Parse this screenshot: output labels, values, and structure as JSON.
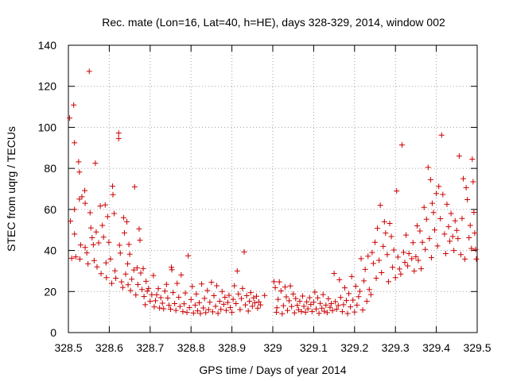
{
  "chart_data": {
    "type": "scatter",
    "title": "Rec. mate (Lon=16, Lat=40, h=HE), days 328-329, 2014, window 002",
    "xlabel": "GPS time / Days of year 2014",
    "ylabel": "STEC from uqrg / TECUs",
    "xlim": [
      328.5,
      329.5
    ],
    "ylim": [
      0,
      140
    ],
    "x_ticks": [
      328.5,
      328.6,
      328.7,
      328.8,
      328.9,
      329,
      329.1,
      329.2,
      329.3,
      329.4,
      329.5
    ],
    "x_tick_labels": [
      "328.5",
      "328.6",
      "328.7",
      "328.8",
      "328.9",
      "329",
      "329.1",
      "329.2",
      "329.3",
      "329.4",
      "329.5"
    ],
    "y_ticks": [
      0,
      20,
      40,
      60,
      80,
      100,
      120,
      140
    ],
    "y_tick_labels": [
      "0",
      "20",
      "40",
      "60",
      "80",
      "100",
      "120",
      "140"
    ],
    "grid": true,
    "marker": "+",
    "color": "#cc0000",
    "points": [
      [
        328.503,
        104.5
      ],
      [
        328.505,
        54.3
      ],
      [
        328.508,
        36.2
      ],
      [
        328.513,
        110.9
      ],
      [
        328.515,
        92.5
      ],
      [
        328.515,
        60.0
      ],
      [
        328.515,
        48.0
      ],
      [
        328.518,
        36.9
      ],
      [
        328.525,
        83.2
      ],
      [
        328.527,
        78.2
      ],
      [
        328.527,
        65.0
      ],
      [
        328.528,
        35.8
      ],
      [
        328.53,
        42.7
      ],
      [
        328.533,
        66.2
      ],
      [
        328.54,
        69.2
      ],
      [
        328.541,
        63.0
      ],
      [
        328.541,
        41.5
      ],
      [
        328.545,
        38.8
      ],
      [
        328.548,
        33.5
      ],
      [
        328.551,
        127.3
      ],
      [
        328.553,
        58.4
      ],
      [
        328.555,
        51.0
      ],
      [
        328.558,
        46.2
      ],
      [
        328.561,
        42.8
      ],
      [
        328.563,
        35.1
      ],
      [
        328.566,
        82.5
      ],
      [
        328.568,
        49.0
      ],
      [
        328.57,
        32.0
      ],
      [
        328.574,
        43.7
      ],
      [
        328.578,
        61.7
      ],
      [
        328.58,
        28.7
      ],
      [
        328.583,
        52.2
      ],
      [
        328.586,
        46.5
      ],
      [
        328.59,
        62.2
      ],
      [
        328.592,
        34.0
      ],
      [
        328.593,
        26.8
      ],
      [
        328.596,
        56.5
      ],
      [
        328.599,
        44.0
      ],
      [
        328.603,
        35.8
      ],
      [
        328.606,
        24.0
      ],
      [
        328.608,
        71.3
      ],
      [
        328.609,
        67.2
      ],
      [
        328.612,
        58.0
      ],
      [
        328.614,
        30.1
      ],
      [
        328.616,
        26.5
      ],
      [
        328.623,
        97.2
      ],
      [
        328.623,
        94.5
      ],
      [
        328.625,
        42.6
      ],
      [
        328.627,
        38.7
      ],
      [
        328.63,
        24.7
      ],
      [
        328.633,
        22.0
      ],
      [
        328.635,
        56.0
      ],
      [
        328.637,
        48.6
      ],
      [
        328.64,
        28.5
      ],
      [
        328.643,
        54.0
      ],
      [
        328.645,
        33.5
      ],
      [
        328.646,
        23.3
      ],
      [
        328.648,
        43.0
      ],
      [
        328.65,
        38.2
      ],
      [
        328.652,
        20.5
      ],
      [
        328.655,
        26.0
      ],
      [
        328.66,
        30.5
      ],
      [
        328.662,
        71.0
      ],
      [
        328.665,
        18.3
      ],
      [
        328.668,
        31.5
      ],
      [
        328.67,
        23.4
      ],
      [
        328.673,
        50.5
      ],
      [
        328.675,
        45.0
      ],
      [
        328.677,
        29.0
      ],
      [
        328.68,
        21.0
      ],
      [
        328.683,
        31.2
      ],
      [
        328.685,
        17.6
      ],
      [
        328.688,
        13.6
      ],
      [
        328.69,
        25.0
      ],
      [
        328.693,
        20.2
      ],
      [
        328.696,
        21.5
      ],
      [
        328.7,
        15.3
      ],
      [
        328.704,
        18.4
      ],
      [
        328.708,
        27.8
      ],
      [
        328.71,
        12.5
      ],
      [
        328.713,
        15.5
      ],
      [
        328.716,
        18.4
      ],
      [
        328.72,
        21.4
      ],
      [
        328.723,
        12.0
      ],
      [
        328.726,
        17.0
      ],
      [
        328.73,
        14.3
      ],
      [
        328.733,
        11.6
      ],
      [
        328.736,
        20.2
      ],
      [
        328.74,
        23.5
      ],
      [
        328.743,
        16.8
      ],
      [
        328.746,
        13.3
      ],
      [
        328.75,
        11.4
      ],
      [
        328.752,
        31.8
      ],
      [
        328.753,
        30.6
      ],
      [
        328.756,
        19.5
      ],
      [
        328.76,
        14.1
      ],
      [
        328.763,
        10.8
      ],
      [
        328.766,
        24.0
      ],
      [
        328.77,
        17.2
      ],
      [
        328.773,
        12.7
      ],
      [
        328.776,
        28.1
      ],
      [
        328.78,
        10.2
      ],
      [
        328.783,
        14.0
      ],
      [
        328.786,
        19.3
      ],
      [
        328.79,
        9.8
      ],
      [
        328.793,
        37.4
      ],
      [
        328.796,
        12.2
      ],
      [
        328.8,
        16.1
      ],
      [
        328.803,
        22.5
      ],
      [
        328.806,
        9.5
      ],
      [
        328.81,
        13.4
      ],
      [
        328.813,
        18.8
      ],
      [
        328.816,
        10.6
      ],
      [
        328.82,
        14.5
      ],
      [
        328.823,
        9.3
      ],
      [
        328.826,
        23.7
      ],
      [
        328.83,
        12.0
      ],
      [
        328.833,
        16.7
      ],
      [
        328.836,
        9.7
      ],
      [
        328.84,
        20.5
      ],
      [
        328.843,
        11.2
      ],
      [
        328.846,
        14.8
      ],
      [
        328.85,
        24.5
      ],
      [
        328.853,
        10.1
      ],
      [
        328.856,
        18.0
      ],
      [
        328.86,
        12.8
      ],
      [
        328.863,
        22.8
      ],
      [
        328.866,
        9.4
      ],
      [
        328.87,
        15.3
      ],
      [
        328.873,
        11.3
      ],
      [
        328.876,
        20.0
      ],
      [
        328.88,
        13.8
      ],
      [
        328.883,
        17.2
      ],
      [
        328.886,
        10.8
      ],
      [
        328.89,
        14.7
      ],
      [
        328.893,
        18.2
      ],
      [
        328.896,
        12.2
      ],
      [
        328.9,
        9.9
      ],
      [
        328.903,
        16.2
      ],
      [
        328.906,
        22.8
      ],
      [
        328.91,
        14.1
      ],
      [
        328.913,
        30.0
      ],
      [
        328.916,
        18.8
      ],
      [
        328.92,
        11.2
      ],
      [
        328.923,
        16.6
      ],
      [
        328.926,
        21.5
      ],
      [
        328.93,
        39.3
      ],
      [
        328.933,
        13.5
      ],
      [
        328.936,
        18.0
      ],
      [
        328.94,
        10.5
      ],
      [
        328.943,
        15.3
      ],
      [
        328.946,
        19.5
      ],
      [
        328.95,
        12.8
      ],
      [
        328.953,
        16.9
      ],
      [
        328.956,
        14.5
      ],
      [
        328.96,
        17.7
      ],
      [
        328.963,
        11.9
      ],
      [
        328.966,
        15.0
      ],
      [
        328.97,
        13.5
      ],
      [
        328.98,
        18.1
      ],
      [
        329.003,
        24.8
      ],
      [
        329.006,
        21.9
      ],
      [
        329.009,
        9.9
      ],
      [
        329.01,
        12.1
      ],
      [
        329.013,
        16.2
      ],
      [
        329.016,
        24.7
      ],
      [
        329.02,
        20.3
      ],
      [
        329.023,
        9.2
      ],
      [
        329.026,
        13.1
      ],
      [
        329.03,
        22.2
      ],
      [
        329.033,
        17.4
      ],
      [
        329.036,
        10.8
      ],
      [
        329.04,
        15.5
      ],
      [
        329.043,
        22.7
      ],
      [
        329.046,
        12.7
      ],
      [
        329.05,
        18.8
      ],
      [
        329.053,
        9.6
      ],
      [
        329.056,
        16.6
      ],
      [
        329.06,
        13.3
      ],
      [
        329.063,
        11.1
      ],
      [
        329.066,
        15.3
      ],
      [
        329.07,
        10.2
      ],
      [
        329.073,
        17.8
      ],
      [
        329.076,
        12.8
      ],
      [
        329.08,
        9.9
      ],
      [
        329.083,
        15.0
      ],
      [
        329.086,
        11.6
      ],
      [
        329.09,
        17.0
      ],
      [
        329.093,
        13.7
      ],
      [
        329.096,
        10.3
      ],
      [
        329.1,
        14.8
      ],
      [
        329.103,
        19.7
      ],
      [
        329.106,
        11.5
      ],
      [
        329.11,
        16.9
      ],
      [
        329.113,
        9.4
      ],
      [
        329.116,
        14.2
      ],
      [
        329.12,
        11.9
      ],
      [
        329.123,
        18.5
      ],
      [
        329.126,
        10.4
      ],
      [
        329.13,
        13.4
      ],
      [
        329.133,
        9.7
      ],
      [
        329.136,
        16.5
      ],
      [
        329.14,
        12.3
      ],
      [
        329.143,
        14.1
      ],
      [
        329.146,
        10.7
      ],
      [
        329.15,
        28.8
      ],
      [
        329.153,
        15.1
      ],
      [
        329.156,
        11.4
      ],
      [
        329.16,
        13.2
      ],
      [
        329.163,
        25.7
      ],
      [
        329.166,
        17.1
      ],
      [
        329.17,
        10.2
      ],
      [
        329.173,
        13.6
      ],
      [
        329.176,
        21.8
      ],
      [
        329.18,
        15.6
      ],
      [
        329.183,
        9.3
      ],
      [
        329.186,
        19.0
      ],
      [
        329.19,
        12.5
      ],
      [
        329.193,
        27.3
      ],
      [
        329.196,
        15.8
      ],
      [
        329.2,
        10.0
      ],
      [
        329.203,
        22.6
      ],
      [
        329.206,
        13.4
      ],
      [
        329.21,
        17.5
      ],
      [
        329.213,
        20.1
      ],
      [
        329.216,
        36.0
      ],
      [
        329.22,
        11.0
      ],
      [
        329.223,
        25.2
      ],
      [
        329.226,
        30.8
      ],
      [
        329.23,
        15.3
      ],
      [
        329.233,
        37.2
      ],
      [
        329.236,
        21.0
      ],
      [
        329.24,
        18.5
      ],
      [
        329.243,
        39.0
      ],
      [
        329.246,
        33.7
      ],
      [
        329.25,
        44.0
      ],
      [
        329.253,
        26.5
      ],
      [
        329.256,
        50.8
      ],
      [
        329.26,
        35.2
      ],
      [
        329.263,
        62.0
      ],
      [
        329.266,
        29.2
      ],
      [
        329.27,
        42.0
      ],
      [
        329.273,
        54.0
      ],
      [
        329.276,
        48.5
      ],
      [
        329.28,
        38.0
      ],
      [
        329.283,
        24.8
      ],
      [
        329.286,
        53.2
      ],
      [
        329.29,
        46.8
      ],
      [
        329.293,
        31.8
      ],
      [
        329.296,
        40.2
      ],
      [
        329.3,
        26.8
      ],
      [
        329.303,
        69.0
      ],
      [
        329.306,
        36.8
      ],
      [
        329.31,
        31.0
      ],
      [
        329.313,
        28.5
      ],
      [
        329.316,
        91.4
      ],
      [
        329.32,
        39.1
      ],
      [
        329.323,
        34.2
      ],
      [
        329.326,
        47.5
      ],
      [
        329.33,
        32.5
      ],
      [
        329.333,
        38.5
      ],
      [
        329.34,
        36.0
      ],
      [
        329.343,
        43.8
      ],
      [
        329.346,
        30.0
      ],
      [
        329.35,
        37.0
      ],
      [
        329.353,
        52.0
      ],
      [
        329.356,
        35.2
      ],
      [
        329.36,
        49.5
      ],
      [
        329.363,
        31.1
      ],
      [
        329.366,
        44.0
      ],
      [
        329.37,
        61.0
      ],
      [
        329.373,
        40.5
      ],
      [
        329.376,
        55.2
      ],
      [
        329.38,
        80.5
      ],
      [
        329.383,
        45.8
      ],
      [
        329.386,
        74.5
      ],
      [
        329.388,
        36.5
      ],
      [
        329.39,
        63.0
      ],
      [
        329.393,
        58.5
      ],
      [
        329.396,
        50.0
      ],
      [
        329.4,
        67.8
      ],
      [
        329.403,
        42.2
      ],
      [
        329.406,
        71.2
      ],
      [
        329.41,
        55.5
      ],
      [
        329.413,
        96.2
      ],
      [
        329.416,
        67.3
      ],
      [
        329.42,
        48.0
      ],
      [
        329.423,
        38.5
      ],
      [
        329.426,
        62.5
      ],
      [
        329.43,
        51.6
      ],
      [
        329.433,
        44.5
      ],
      [
        329.436,
        58.0
      ],
      [
        329.44,
        46.8
      ],
      [
        329.443,
        40.0
      ],
      [
        329.446,
        54.5
      ],
      [
        329.45,
        49.8
      ],
      [
        329.453,
        45.8
      ],
      [
        329.456,
        86.0
      ],
      [
        329.46,
        38.0
      ],
      [
        329.463,
        55.6
      ],
      [
        329.466,
        75.0
      ],
      [
        329.47,
        35.8
      ],
      [
        329.473,
        70.6
      ],
      [
        329.476,
        64.8
      ],
      [
        329.48,
        46.2
      ],
      [
        329.483,
        52.2
      ],
      [
        329.486,
        41.0
      ],
      [
        329.488,
        84.5
      ],
      [
        329.49,
        73.5
      ],
      [
        329.492,
        58.6
      ],
      [
        329.494,
        48.5
      ],
      [
        329.496,
        40.5
      ],
      [
        329.498,
        35.8
      ]
    ]
  }
}
